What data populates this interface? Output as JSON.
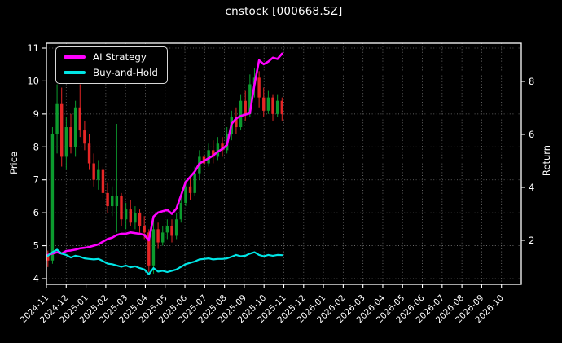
{
  "title": "cnstock [000668.SZ]",
  "legend": [
    {
      "label": "AI Strategy",
      "color": "#ff00ff"
    },
    {
      "label": "Buy-and-Hold",
      "color": "#00e5e5"
    }
  ],
  "axes": {
    "left_label": "Price",
    "right_label": "Return",
    "price_ticks": [
      4,
      5,
      6,
      7,
      8,
      9,
      10,
      11
    ],
    "return_ticks": [
      2,
      4,
      6,
      8
    ],
    "x_ticks": [
      "2024-11",
      "2024-12",
      "2025-01",
      "2025-02",
      "2025-03",
      "2025-04",
      "2025-05",
      "2025-06",
      "2025-07",
      "2025-08",
      "2025-09",
      "2025-10",
      "2025-11",
      "2025-12",
      "2026-01",
      "2026-02",
      "2026-03",
      "2026-04",
      "2026-05",
      "2026-06",
      "2026-07",
      "2026-08",
      "2026-09",
      "2026-10"
    ]
  },
  "style": {
    "background": "#000000",
    "foreground": "#ffffff",
    "grid_color": "#7a7a7a",
    "up_color": "#0c9b2e",
    "down_color": "#e62626",
    "ai_color": "#ff00ff",
    "bh_color": "#00e5e5"
  },
  "chart_data": {
    "type": "candlestick+line",
    "title": "cnstock [000668.SZ]",
    "xlabel": "",
    "ylabel_left": "Price",
    "ylabel_right": "Return",
    "x_range_months": [
      "2024-11",
      "2026-10"
    ],
    "price_axis_range": [
      3.83,
      11.15
    ],
    "return_axis_range": [
      0.15,
      9.25
    ],
    "grid": "dotted",
    "legend_position": "upper-left",
    "candle_weeks": [
      "2024-11-04",
      "2024-11-11",
      "2024-11-18",
      "2024-11-25",
      "2024-12-02",
      "2024-12-09",
      "2024-12-16",
      "2024-12-23",
      "2024-12-30",
      "2025-01-06",
      "2025-01-13",
      "2025-01-20",
      "2025-01-27",
      "2025-02-03",
      "2025-02-10",
      "2025-02-17",
      "2025-02-24",
      "2025-03-03",
      "2025-03-10",
      "2025-03-17",
      "2025-03-24",
      "2025-03-31",
      "2025-04-07",
      "2025-04-14",
      "2025-04-21",
      "2025-04-28",
      "2025-05-05",
      "2025-05-12",
      "2025-05-19",
      "2025-05-26",
      "2025-06-02",
      "2025-06-09",
      "2025-06-16",
      "2025-06-23",
      "2025-06-30",
      "2025-07-07",
      "2025-07-14",
      "2025-07-21",
      "2025-07-28",
      "2025-08-04",
      "2025-08-11",
      "2025-08-18",
      "2025-08-25",
      "2025-09-01",
      "2025-09-08",
      "2025-09-15",
      "2025-09-22",
      "2025-09-29",
      "2025-10-06",
      "2025-10-13",
      "2025-10-20",
      "2025-10-27"
    ],
    "candles_ohlc": [
      [
        4.7,
        4.85,
        4.35,
        4.55
      ],
      [
        4.55,
        8.6,
        4.45,
        8.4
      ],
      [
        8.4,
        9.9,
        7.8,
        9.3
      ],
      [
        9.3,
        9.8,
        7.4,
        7.7
      ],
      [
        7.7,
        8.9,
        7.3,
        8.6
      ],
      [
        8.6,
        9.0,
        7.8,
        8.0
      ],
      [
        8.0,
        9.4,
        7.7,
        9.2
      ],
      [
        9.2,
        9.9,
        8.3,
        8.5
      ],
      [
        8.5,
        8.8,
        7.9,
        8.1
      ],
      [
        8.1,
        8.4,
        7.3,
        7.5
      ],
      [
        7.5,
        7.8,
        6.8,
        7.0
      ],
      [
        7.0,
        7.6,
        6.7,
        7.3
      ],
      [
        7.3,
        7.4,
        6.4,
        6.6
      ],
      [
        6.6,
        6.9,
        6.0,
        6.2
      ],
      [
        6.2,
        6.8,
        5.9,
        6.5
      ],
      [
        6.2,
        8.7,
        5.4,
        6.5
      ],
      [
        6.5,
        6.6,
        5.6,
        5.8
      ],
      [
        5.8,
        6.3,
        5.5,
        6.1
      ],
      [
        6.1,
        6.4,
        5.6,
        5.7
      ],
      [
        5.7,
        6.2,
        5.5,
        6.0
      ],
      [
        6.0,
        6.1,
        5.4,
        5.6
      ],
      [
        5.6,
        5.9,
        5.2,
        5.4
      ],
      [
        5.4,
        5.5,
        4.2,
        4.4
      ],
      [
        4.4,
        5.9,
        4.15,
        5.5
      ],
      [
        5.5,
        5.7,
        4.9,
        5.1
      ],
      [
        5.1,
        5.6,
        5.0,
        5.4
      ],
      [
        5.4,
        5.8,
        5.2,
        5.6
      ],
      [
        5.6,
        5.8,
        5.1,
        5.3
      ],
      [
        5.3,
        6.0,
        5.2,
        5.8
      ],
      [
        5.8,
        6.5,
        5.7,
        6.3
      ],
      [
        6.3,
        7.0,
        6.2,
        6.8
      ],
      [
        6.8,
        7.1,
        6.4,
        6.6
      ],
      [
        6.6,
        7.4,
        6.5,
        7.2
      ],
      [
        7.2,
        7.9,
        7.0,
        7.7
      ],
      [
        7.7,
        8.0,
        7.3,
        7.5
      ],
      [
        7.5,
        8.1,
        7.4,
        7.9
      ],
      [
        7.9,
        8.2,
        7.5,
        7.7
      ],
      [
        7.7,
        8.3,
        7.6,
        8.1
      ],
      [
        8.1,
        8.3,
        7.7,
        7.9
      ],
      [
        7.9,
        8.6,
        7.8,
        8.4
      ],
      [
        8.4,
        9.1,
        8.2,
        8.9
      ],
      [
        8.9,
        9.2,
        8.4,
        8.6
      ],
      [
        8.6,
        9.6,
        8.5,
        9.4
      ],
      [
        9.4,
        9.7,
        8.8,
        9.0
      ],
      [
        9.0,
        10.2,
        8.9,
        9.9
      ],
      [
        9.9,
        10.4,
        9.5,
        10.1
      ],
      [
        10.1,
        10.3,
        9.2,
        9.5
      ],
      [
        9.5,
        9.8,
        8.9,
        9.1
      ],
      [
        9.1,
        9.7,
        9.0,
        9.5
      ],
      [
        9.5,
        9.6,
        8.8,
        9.0
      ],
      [
        9.0,
        9.6,
        8.9,
        9.4
      ],
      [
        9.4,
        9.5,
        8.8,
        9.0
      ]
    ],
    "series": [
      {
        "name": "AI Strategy",
        "axis": "return",
        "color": "#ff00ff",
        "width": 2.6,
        "values": [
          1.45,
          1.5,
          1.55,
          1.5,
          1.6,
          1.62,
          1.65,
          1.7,
          1.72,
          1.75,
          1.8,
          1.85,
          1.95,
          2.05,
          2.1,
          2.2,
          2.25,
          2.25,
          2.3,
          2.27,
          2.25,
          2.2,
          2.0,
          2.9,
          3.05,
          3.1,
          3.15,
          3.0,
          3.2,
          3.7,
          4.2,
          4.4,
          4.6,
          4.9,
          5.0,
          5.1,
          5.2,
          5.35,
          5.45,
          5.6,
          6.4,
          6.6,
          6.7,
          6.75,
          6.8,
          7.9,
          8.8,
          8.65,
          8.75,
          8.9,
          8.85,
          9.05
        ]
      },
      {
        "name": "Buy-and-Hold",
        "axis": "return",
        "color": "#00e5e5",
        "width": 2.2,
        "values": [
          1.42,
          1.55,
          1.65,
          1.5,
          1.45,
          1.35,
          1.42,
          1.38,
          1.32,
          1.3,
          1.28,
          1.3,
          1.22,
          1.12,
          1.1,
          1.05,
          1.0,
          1.05,
          0.98,
          1.02,
          0.95,
          0.9,
          0.72,
          0.95,
          0.82,
          0.85,
          0.8,
          0.85,
          0.9,
          1.0,
          1.1,
          1.15,
          1.2,
          1.28,
          1.3,
          1.32,
          1.28,
          1.3,
          1.3,
          1.32,
          1.38,
          1.45,
          1.4,
          1.42,
          1.5,
          1.55,
          1.45,
          1.4,
          1.45,
          1.42,
          1.45,
          1.44
        ]
      }
    ]
  }
}
